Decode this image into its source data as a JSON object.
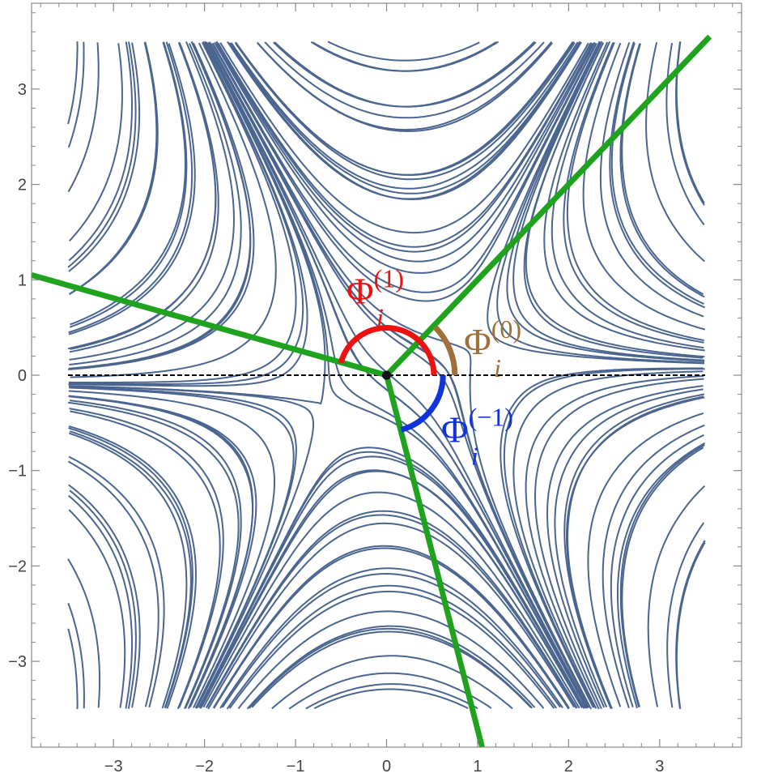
{
  "chart_data": {
    "type": "streamline",
    "xlim": [
      -3.9,
      3.9
    ],
    "ylim": [
      -3.9,
      3.9
    ],
    "xticks": [
      -3,
      -2,
      -1,
      0,
      1,
      2,
      3
    ],
    "yticks": [
      -3,
      -2,
      -1,
      0,
      1,
      2,
      3
    ],
    "xtick_labels": [
      "−3",
      "−2",
      "−1",
      "0",
      "1",
      "2",
      "3"
    ],
    "ytick_labels": [
      "−3",
      "−2",
      "−1",
      "0",
      "1",
      "2",
      "3"
    ],
    "grid": false,
    "stream_field": {
      "description": "saddle-like flow around a triple junction at the origin",
      "color": "#4a6590"
    },
    "rays": [
      {
        "name": "ray-upper-right",
        "from": [
          0,
          0
        ],
        "to": [
          3.55,
          3.55
        ],
        "color": "#1fa31f"
      },
      {
        "name": "ray-left",
        "from": [
          0,
          0
        ],
        "to": [
          -3.9,
          1.05
        ],
        "color": "#1fa31f"
      },
      {
        "name": "ray-lower",
        "from": [
          0,
          0
        ],
        "to": [
          1.05,
          -3.9
        ],
        "color": "#1fa31f"
      }
    ],
    "reference_line": {
      "y": 0,
      "x": [
        -3.5,
        3.5
      ],
      "style": "dashed",
      "color": "#000000"
    },
    "origin_point": [
      0,
      0
    ],
    "arcs": [
      {
        "name": "phi-1",
        "radius": 0.52,
        "from_deg": 0,
        "to_deg": 165,
        "color": "#ee1111"
      },
      {
        "name": "phi-0",
        "radius": 0.75,
        "from_deg": 0,
        "to_deg": 45,
        "color": "#a0703a"
      },
      {
        "name": "phi-minus-1",
        "radius": 0.62,
        "from_deg": -75,
        "to_deg": 0,
        "color": "#1133dd"
      }
    ],
    "annotations": [
      {
        "key": "phi1",
        "base": "Φ",
        "sup": "(1)",
        "sub": "i",
        "x": -0.44,
        "y": 0.75,
        "color": "#ee1111"
      },
      {
        "key": "phi0",
        "base": "Φ",
        "sup": "(0)",
        "sub": "i",
        "x": 0.85,
        "y": 0.22,
        "color": "#a0703a"
      },
      {
        "key": "phim1",
        "base": "Φ",
        "sup": "(−1)",
        "sub": "i",
        "x": 0.6,
        "y": -0.7,
        "color": "#1133dd"
      }
    ]
  }
}
